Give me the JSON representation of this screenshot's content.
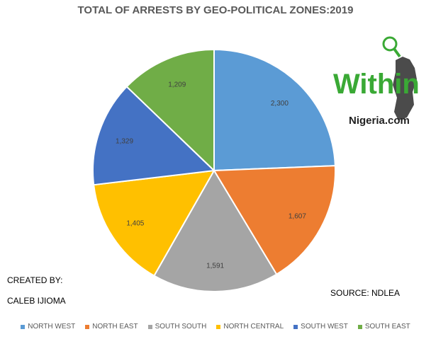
{
  "chart_data": {
    "type": "pie",
    "title": "TOTAL OF ARRESTS BY GEO-POLITICAL ZONES:2019",
    "categories": [
      "NORTH WEST",
      "NORTH EAST",
      "SOUTH SOUTH",
      "NORTH CENTRAL",
      "SOUTH WEST",
      "SOUTH EAST"
    ],
    "values": [
      2300,
      1607,
      1591,
      1405,
      1329,
      1209
    ],
    "value_labels": [
      "2,300",
      "1,607",
      "1,591",
      "1,405",
      "1,329",
      "1,209"
    ],
    "colors": [
      "#5b9bd5",
      "#ed7d31",
      "#a5a5a5",
      "#ffc000",
      "#4472c4",
      "#70ad47"
    ],
    "legend_position": "bottom"
  },
  "credits": {
    "created_by_label": "CREATED BY:",
    "author": "CALEB IJIOMA",
    "source": "SOURCE: NDLEA"
  },
  "logo": {
    "word": "Within",
    "domain": "Nigeria.com"
  }
}
